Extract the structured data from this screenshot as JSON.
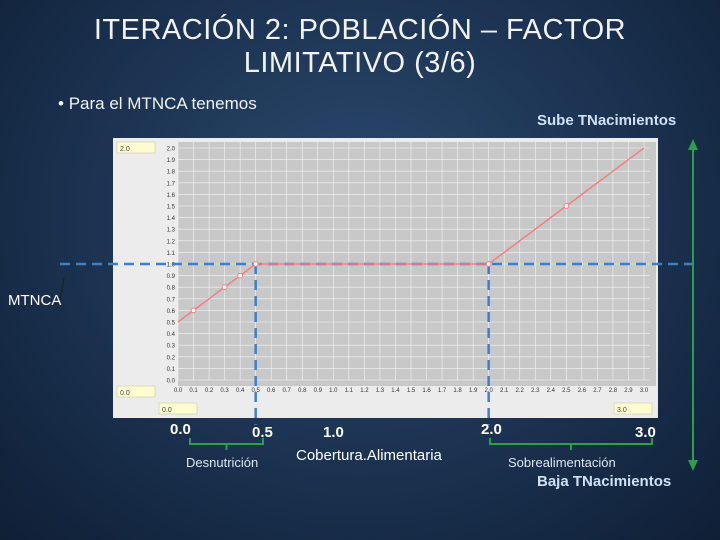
{
  "slide": {
    "title": "ITERACIÓN 2: POBLACIÓN – FACTOR LIMITATIVO (3/6)",
    "bullet": "Para el MTNCA tenemos",
    "sube_label": "Sube TNacimientos",
    "baja_label": "Baja TNacimientos",
    "mtnca_label": "MTNCA"
  },
  "widget": {
    "y_max_box": "2.0",
    "y_min_box": "0.0",
    "x_min_box": "0.0",
    "x_max_box": "3.0"
  },
  "annotations": [
    {
      "text": "0.0",
      "bold": true
    },
    {
      "text": "0.5",
      "bold": true
    },
    {
      "text": "1.0",
      "bold": true
    },
    {
      "text": "2.0",
      "bold": true
    },
    {
      "text": "3.0",
      "bold": true
    },
    {
      "text": "Desnutrición",
      "bold": false
    },
    {
      "text": "Cobertura.Alimentaria",
      "bold": false
    },
    {
      "text": "Sobrealimentación",
      "bold": false
    }
  ],
  "colors": {
    "line": "#f08080",
    "dashed": "#3f7fc9",
    "arrow": "#2e9e4a",
    "plot_bg": "#c8c8c8",
    "bracket": "#2e9e4a"
  },
  "chart_data": {
    "type": "line",
    "xlim": [
      0.0,
      3.0
    ],
    "ylim": [
      0.0,
      2.0
    ],
    "x_ticks": [
      "0.0",
      "0.1",
      "0.2",
      "0.3",
      "0.4",
      "0.5",
      "0.6",
      "0.7",
      "0.8",
      "0.9",
      "1.0",
      "1.1",
      "1.2",
      "1.3",
      "1.4",
      "1.5",
      "1.6",
      "1.7",
      "1.8",
      "1.9",
      "2.0",
      "2.1",
      "2.2",
      "2.3",
      "2.4",
      "2.5",
      "2.6",
      "2.7",
      "2.8",
      "2.9",
      "3.0"
    ],
    "y_ticks": [
      "0.0",
      "0.1",
      "0.2",
      "0.3",
      "0.4",
      "0.5",
      "0.6",
      "0.7",
      "0.8",
      "0.9",
      "1.0",
      "1.1",
      "1.2",
      "1.3",
      "1.4",
      "1.5",
      "1.6",
      "1.7",
      "1.8",
      "1.9",
      "2.0"
    ],
    "series": [
      {
        "x": [
          0.0,
          0.1,
          0.2,
          0.3,
          0.4,
          0.5,
          2.0,
          2.5,
          3.0
        ],
        "y": [
          0.5,
          0.6,
          0.7,
          0.8,
          0.9,
          1.0,
          1.0,
          1.5,
          2.0
        ]
      }
    ],
    "markers_x": [
      0.1,
      0.3,
      0.4,
      0.5,
      2.0,
      2.5
    ],
    "grid": true
  }
}
